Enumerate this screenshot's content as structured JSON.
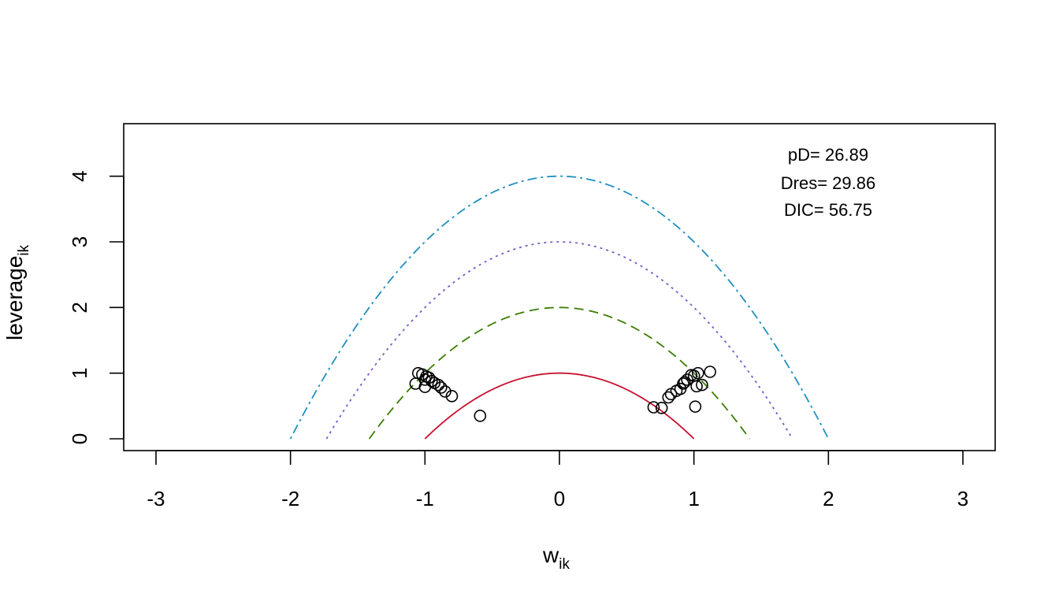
{
  "chart_data": {
    "type": "scatter",
    "title": "",
    "xlabel": {
      "main": "w",
      "sub": "ik"
    },
    "ylabel": {
      "main": "leverage",
      "sub": "ik"
    },
    "xlim": [
      -3.24,
      3.24
    ],
    "ylim": [
      -0.18,
      4.8
    ],
    "x_ticks": [
      -3,
      -2,
      -1,
      0,
      1,
      2,
      3
    ],
    "x_tick_labels": [
      "-3",
      "-2",
      "-1",
      "0",
      "1",
      "2",
      "3"
    ],
    "y_ticks": [
      0,
      1,
      2,
      3,
      4
    ],
    "y_tick_labels": [
      "0",
      "1",
      "2",
      "3",
      "4"
    ],
    "grid": false,
    "annotations": [
      "pD= 26.89",
      "Dres= 29.86",
      "DIC= 56.75"
    ],
    "curves": [
      {
        "c": 1,
        "color": "#c8102e",
        "style": "solid"
      },
      {
        "c": 2,
        "color": "#3a7d00",
        "style": "dashed"
      },
      {
        "c": 3,
        "color": "#7b5cc6",
        "style": "dotted"
      },
      {
        "c": 4,
        "color": "#1f8fc0",
        "style": "dotdash"
      }
    ],
    "points": {
      "x": [
        -1.05,
        -1.02,
        -0.99,
        -0.97,
        -1.0,
        -0.95,
        -0.93,
        -0.9,
        -0.88,
        -0.85,
        -0.8,
        -1.07,
        -1.0,
        -0.59,
        0.7,
        0.76,
        0.81,
        0.83,
        0.87,
        0.9,
        0.93,
        0.95,
        0.98,
        1.0,
        1.03,
        1.06,
        1.02,
        1.12,
        1.01,
        0.92
      ],
      "y": [
        1.0,
        0.98,
        0.95,
        0.93,
        0.9,
        0.88,
        0.85,
        0.82,
        0.78,
        0.72,
        0.65,
        0.84,
        0.79,
        0.35,
        0.48,
        0.47,
        0.63,
        0.68,
        0.73,
        0.76,
        0.86,
        0.9,
        0.97,
        0.96,
        1.0,
        0.82,
        0.8,
        1.02,
        0.49,
        0.84
      ]
    },
    "marker": "open-circle"
  }
}
